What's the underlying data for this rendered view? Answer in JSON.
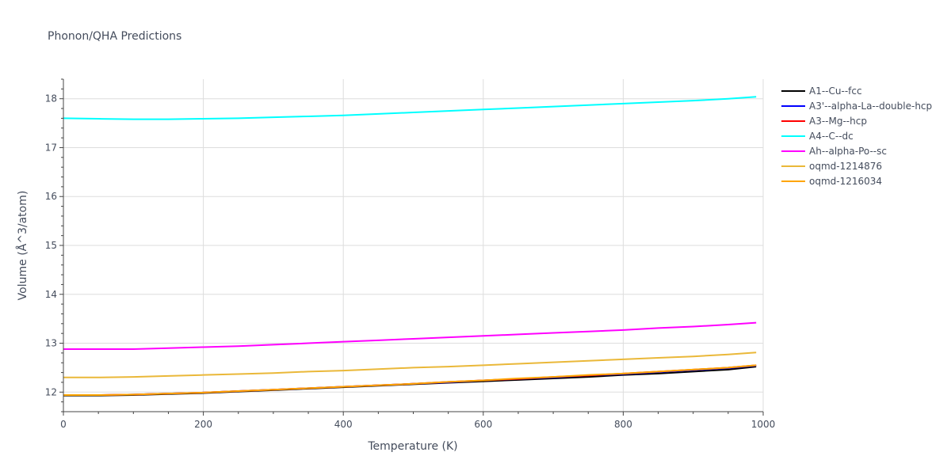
{
  "chart_data": {
    "type": "line",
    "title": "Phonon/QHA Predictions",
    "xlabel": "Temperature (K)",
    "ylabel": "Volume (Å^3/atom)",
    "xlim": [
      0,
      1000
    ],
    "ylim": [
      11.6,
      18.4
    ],
    "xticks": [
      0,
      200,
      400,
      600,
      800,
      1000
    ],
    "yticks": [
      12,
      13,
      14,
      15,
      16,
      17,
      18
    ],
    "grid": true,
    "legend_position": "right",
    "x": [
      0,
      50,
      100,
      150,
      200,
      250,
      300,
      350,
      400,
      450,
      500,
      550,
      600,
      650,
      700,
      750,
      800,
      850,
      900,
      950,
      990
    ],
    "series": [
      {
        "name": "A1--Cu--fcc",
        "color": "#000000",
        "values": [
          11.93,
          11.93,
          11.94,
          11.96,
          11.98,
          12.01,
          12.04,
          12.07,
          12.1,
          12.13,
          12.16,
          12.19,
          12.22,
          12.25,
          12.28,
          12.31,
          12.35,
          12.38,
          12.42,
          12.46,
          12.52
        ]
      },
      {
        "name": "A3'--alpha-La--double-hcp",
        "color": "#0000ff",
        "values": [
          11.94,
          11.94,
          11.95,
          11.97,
          11.99,
          12.02,
          12.05,
          12.08,
          12.11,
          12.14,
          12.17,
          12.2,
          12.24,
          12.27,
          12.3,
          12.34,
          12.37,
          12.41,
          12.45,
          12.49,
          12.54
        ]
      },
      {
        "name": "A3--Mg--hcp",
        "color": "#ff0000",
        "values": [
          11.94,
          11.94,
          11.95,
          11.97,
          11.99,
          12.02,
          12.05,
          12.08,
          12.11,
          12.14,
          12.17,
          12.21,
          12.24,
          12.27,
          12.31,
          12.34,
          12.38,
          12.42,
          12.46,
          12.5,
          12.55
        ]
      },
      {
        "name": "A4--C--dc",
        "color": "#00ffff",
        "values": [
          17.6,
          17.59,
          17.58,
          17.58,
          17.59,
          17.6,
          17.62,
          17.64,
          17.66,
          17.69,
          17.72,
          17.75,
          17.78,
          17.81,
          17.84,
          17.87,
          17.9,
          17.93,
          17.96,
          18.0,
          18.04
        ]
      },
      {
        "name": "Ah--alpha-Po--sc",
        "color": "#ff00ff",
        "values": [
          12.88,
          12.88,
          12.88,
          12.9,
          12.92,
          12.94,
          12.97,
          13.0,
          13.03,
          13.06,
          13.09,
          13.12,
          13.15,
          13.18,
          13.21,
          13.24,
          13.27,
          13.31,
          13.34,
          13.38,
          13.42
        ]
      },
      {
        "name": "oqmd-1214876",
        "color": "#eab839",
        "values": [
          12.3,
          12.3,
          12.31,
          12.33,
          12.35,
          12.37,
          12.39,
          12.42,
          12.44,
          12.47,
          12.5,
          12.52,
          12.55,
          12.58,
          12.61,
          12.64,
          12.67,
          12.7,
          12.73,
          12.77,
          12.81
        ]
      },
      {
        "name": "oqmd-1216034",
        "color": "#ffa500",
        "values": [
          11.94,
          11.94,
          11.95,
          11.97,
          11.99,
          12.02,
          12.05,
          12.08,
          12.11,
          12.14,
          12.17,
          12.21,
          12.24,
          12.28,
          12.31,
          12.35,
          12.38,
          12.42,
          12.46,
          12.5,
          12.55
        ]
      }
    ]
  }
}
